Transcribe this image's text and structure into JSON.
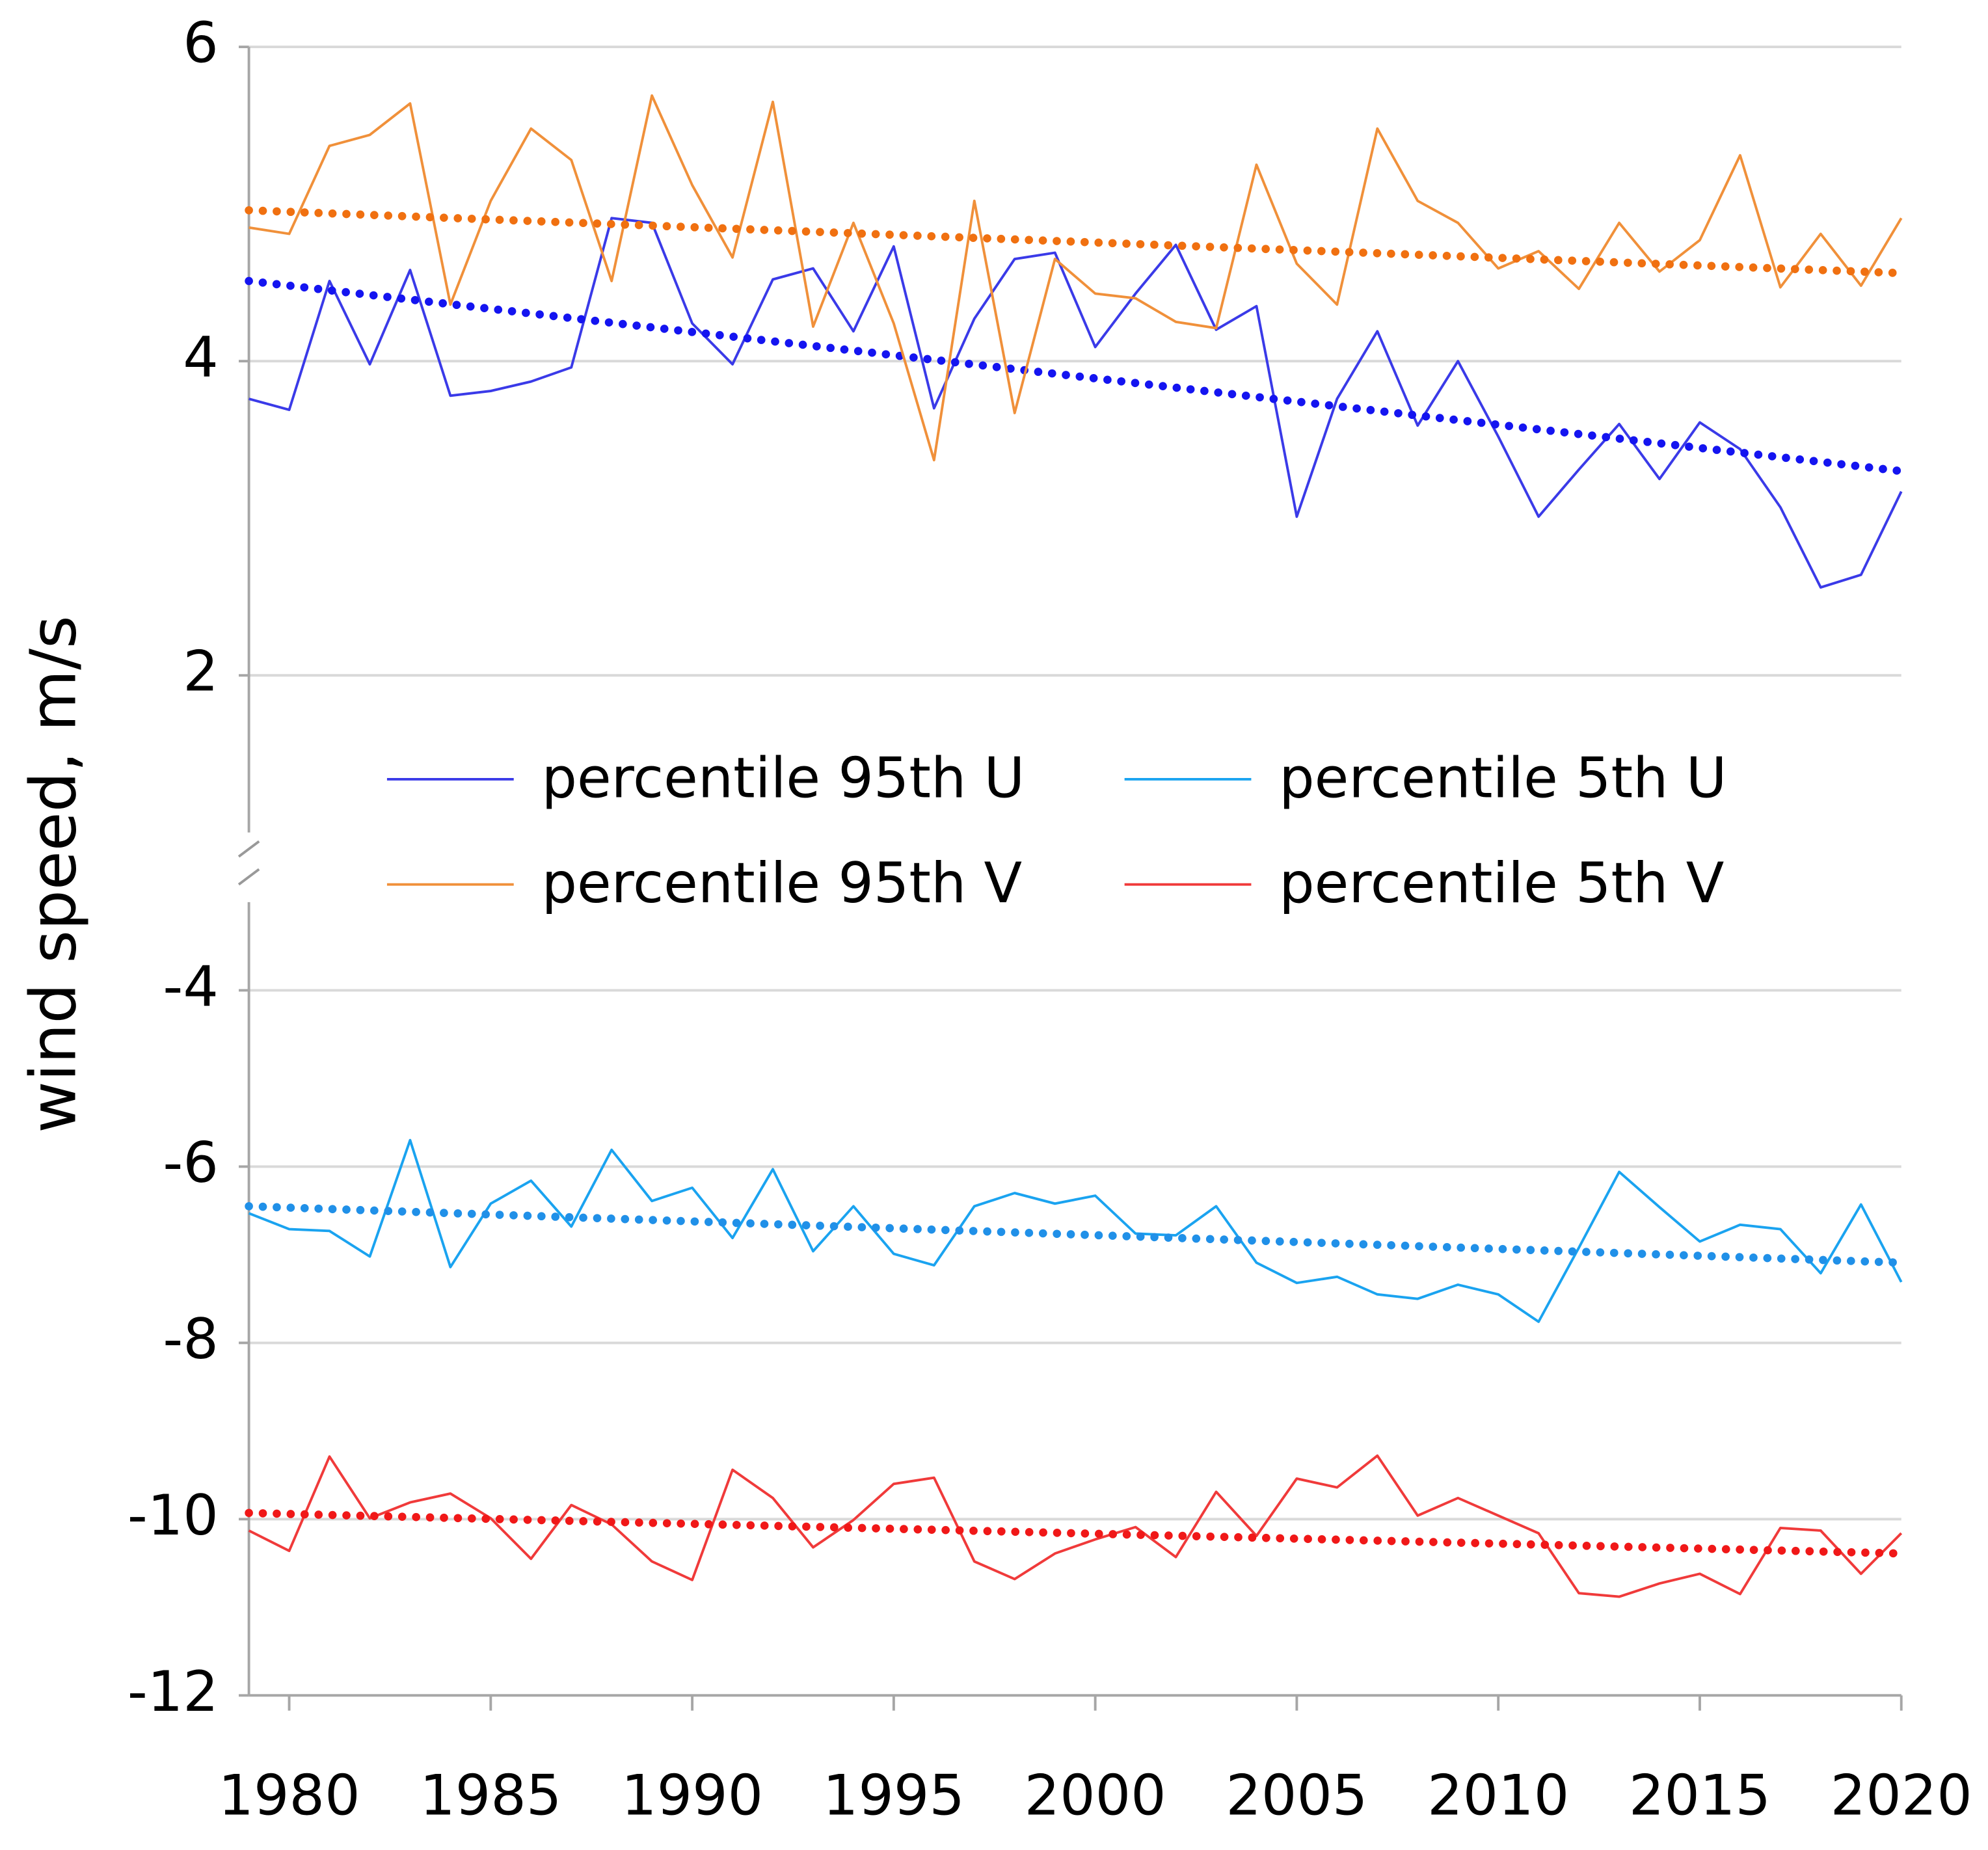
{
  "chart_data": {
    "type": "line",
    "ylabel": "wind speed, m/s",
    "x": [
      1979,
      1980,
      1981,
      1982,
      1983,
      1984,
      1985,
      1986,
      1987,
      1988,
      1989,
      1990,
      1991,
      1992,
      1993,
      1994,
      1995,
      1996,
      1997,
      1998,
      1999,
      2000,
      2001,
      2002,
      2003,
      2004,
      2005,
      2006,
      2007,
      2008,
      2009,
      2010,
      2011,
      2012,
      2013,
      2014,
      2015,
      2016,
      2017,
      2018,
      2019,
      2020
    ],
    "xlim": [
      1979,
      2020
    ],
    "xticks": [
      1980,
      1985,
      1990,
      1995,
      2000,
      2005,
      2010,
      2015,
      2020
    ],
    "panels": [
      {
        "ylim": [
          1,
          6
        ],
        "yticks": [
          2,
          4,
          6
        ]
      },
      {
        "ylim": [
          -12,
          -3
        ],
        "yticks": [
          -12,
          -10,
          -8,
          -6,
          -4
        ]
      }
    ],
    "grid": true,
    "series": [
      {
        "name": "percentile 95th U",
        "color": "#3a3ae8",
        "trend_color": "#1414f0",
        "panel": 0,
        "values": [
          3.76,
          3.69,
          4.51,
          3.98,
          4.58,
          3.78,
          3.81,
          3.87,
          3.96,
          4.91,
          4.88,
          4.24,
          3.98,
          4.52,
          4.59,
          4.19,
          4.73,
          3.7,
          4.27,
          4.65,
          4.69,
          4.09,
          4.43,
          4.74,
          4.2,
          4.35,
          3.01,
          3.76,
          4.19,
          3.59,
          4.0,
          3.52,
          3.01,
          3.31,
          3.6,
          3.25,
          3.61,
          3.44,
          3.07,
          2.56,
          2.64,
          3.17
        ],
        "trend": [
          4.51,
          3.3
        ]
      },
      {
        "name": "percentile 5th U",
        "color": "#1aa3f0",
        "trend_color": "#2090e8",
        "panel": 1,
        "values": [
          -6.53,
          -6.71,
          -6.73,
          -7.02,
          -5.7,
          -7.14,
          -6.42,
          -6.16,
          -6.68,
          -5.81,
          -6.39,
          -6.24,
          -6.81,
          -6.03,
          -6.96,
          -6.45,
          -6.99,
          -7.12,
          -6.45,
          -6.3,
          -6.42,
          -6.33,
          -6.76,
          -6.78,
          -6.45,
          -7.09,
          -7.32,
          -7.25,
          -7.45,
          -7.5,
          -7.34,
          -7.45,
          -7.76,
          -6.92,
          -6.06,
          -6.46,
          -6.85,
          -6.66,
          -6.71,
          -7.21,
          -6.43,
          -7.31
        ],
        "trend": [
          -6.45,
          -7.09
        ]
      },
      {
        "name": "percentile 95th V",
        "color": "#f0903a",
        "trend_color": "#f07010",
        "panel": 0,
        "values": [
          4.85,
          4.81,
          5.37,
          5.44,
          5.64,
          4.36,
          5.02,
          5.48,
          5.28,
          4.51,
          5.69,
          5.12,
          4.66,
          5.65,
          4.22,
          4.88,
          4.24,
          3.37,
          5.02,
          3.67,
          4.65,
          4.43,
          4.4,
          4.25,
          4.21,
          5.25,
          4.62,
          4.36,
          5.48,
          5.02,
          4.88,
          4.59,
          4.7,
          4.46,
          4.88,
          4.57,
          4.77,
          5.31,
          4.47,
          4.81,
          4.48,
          4.91
        ],
        "trend": [
          4.96,
          4.56
        ]
      },
      {
        "name": "percentile 5th V",
        "color": "#f03a3a",
        "trend_color": "#f01818",
        "panel": 1,
        "values": [
          -10.13,
          -10.36,
          -9.29,
          -9.99,
          -9.81,
          -9.71,
          -9.99,
          -10.45,
          -9.84,
          -10.06,
          -10.48,
          -10.69,
          -9.44,
          -9.76,
          -10.32,
          -10.01,
          -9.6,
          -9.53,
          -10.48,
          -10.68,
          -10.39,
          -10.23,
          -10.09,
          -10.43,
          -9.69,
          -10.19,
          -9.54,
          -9.64,
          -9.28,
          -9.96,
          -9.76,
          -9.96,
          -10.16,
          -10.84,
          -10.88,
          -10.73,
          -10.62,
          -10.85,
          -10.1,
          -10.13,
          -10.62,
          -10.16
        ],
        "trend": [
          -9.93,
          -10.39
        ]
      }
    ]
  }
}
